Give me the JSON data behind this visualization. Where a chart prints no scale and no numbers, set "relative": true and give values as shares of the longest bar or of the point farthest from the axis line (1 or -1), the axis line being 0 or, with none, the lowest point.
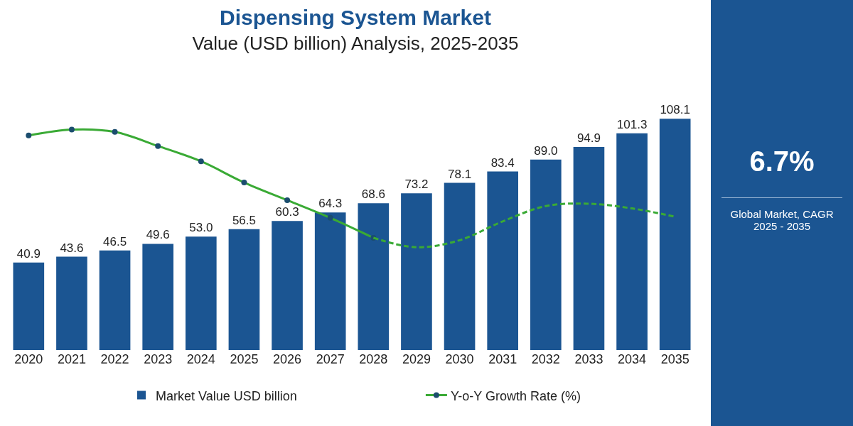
{
  "chart_data": [
    {
      "type": "bar",
      "title": "Dispensing System Market",
      "subtitle": "Value (USD billion) Analysis, 2025-2035",
      "categories": [
        "2020",
        "2021",
        "2022",
        "2023",
        "2024",
        "2025",
        "2026",
        "2027",
        "2028",
        "2029",
        "2030",
        "2031",
        "2032",
        "2033",
        "2034",
        "2035"
      ],
      "series": [
        {
          "name": "Market Value USD billion",
          "color": "#1b5592",
          "values": [
            40.9,
            43.6,
            46.5,
            49.6,
            53.0,
            56.5,
            60.3,
            64.3,
            68.6,
            73.2,
            78.1,
            83.4,
            89.0,
            94.9,
            101.3,
            108.1
          ],
          "value_labels": [
            "40.9",
            "43.6",
            "46.5",
            "49.6",
            "53.0",
            "56.5",
            "60.3",
            "64.3",
            "68.6",
            "73.2",
            "78.1",
            "83.4",
            "89.0",
            "94.9",
            "101.3",
            "108.1"
          ]
        }
      ],
      "tick_labels": "x",
      "legend": "bottom",
      "annotations": [
        "6.7%",
        "Global Market, CAGR 2025 - 2035"
      ]
    },
    {
      "type": "line",
      "relative": true,
      "categories": [
        "2020",
        "2021",
        "2022",
        "2023",
        "2024",
        "2025",
        "2026",
        "2027",
        "2028",
        "2029",
        "2030",
        "2031",
        "2032",
        "2033",
        "2034",
        "2035"
      ],
      "series": [
        {
          "name": "Y-o-Y Growth Rate (%)",
          "color": "#3aaa35",
          "marker": "circle",
          "line_style": "solid",
          "values": [
            0.95,
            1,
            0.98,
            0.86,
            0.73,
            0.55,
            0.4,
            0.25,
            0.08,
            null,
            null,
            null,
            null,
            null,
            null,
            null
          ]
        },
        {
          "color": "#3aaa35",
          "marker": "none",
          "line_style": "dashed",
          "values": [
            null,
            null,
            null,
            null,
            null,
            null,
            null,
            null,
            0.08,
            0,
            0.06,
            0.22,
            0.35,
            0.37,
            0.33,
            0.26
          ]
        }
      ],
      "tick_labels": false,
      "legend": "bottom"
    }
  ]
}
